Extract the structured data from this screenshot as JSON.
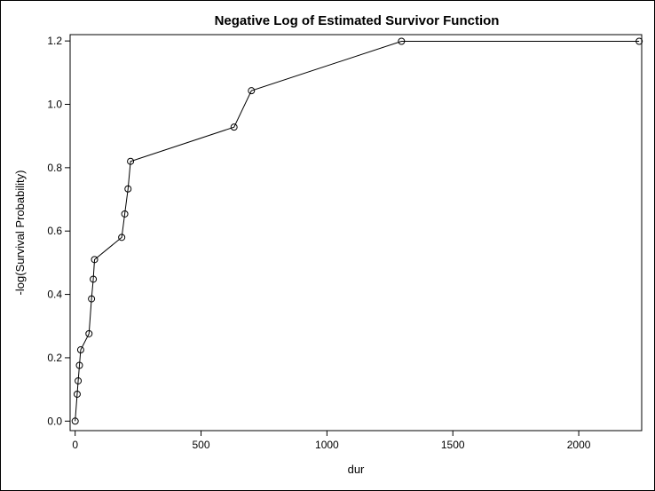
{
  "chart_data": {
    "type": "line",
    "title": "Negative Log of Estimated Survivor Function",
    "xlabel": "dur",
    "ylabel": "-log(Survival Probability)",
    "xlim": [
      -20,
      2250
    ],
    "ylim": [
      -0.03,
      1.22
    ],
    "x_ticks": [
      0,
      500,
      1000,
      1500,
      2000
    ],
    "y_ticks": [
      0.0,
      0.2,
      0.4,
      0.6,
      0.8,
      1.0,
      1.2
    ],
    "x_tick_labels": [
      "0",
      "500",
      "1000",
      "1500",
      "2000"
    ],
    "y_tick_labels": [
      "0.0",
      "0.2",
      "0.4",
      "0.6",
      "0.8",
      "1.0",
      "1.2"
    ],
    "grid": false,
    "marker": "open-circle",
    "line_color": "#000000",
    "x": [
      0,
      8,
      12,
      17,
      22,
      55,
      65,
      72,
      77,
      185,
      197,
      210,
      220,
      631,
      700,
      1296,
      2240
    ],
    "y": [
      0.0,
      0.085,
      0.127,
      0.176,
      0.225,
      0.276,
      0.386,
      0.448,
      0.51,
      0.58,
      0.654,
      0.733,
      0.82,
      0.928,
      1.043,
      1.199,
      1.199
    ]
  }
}
